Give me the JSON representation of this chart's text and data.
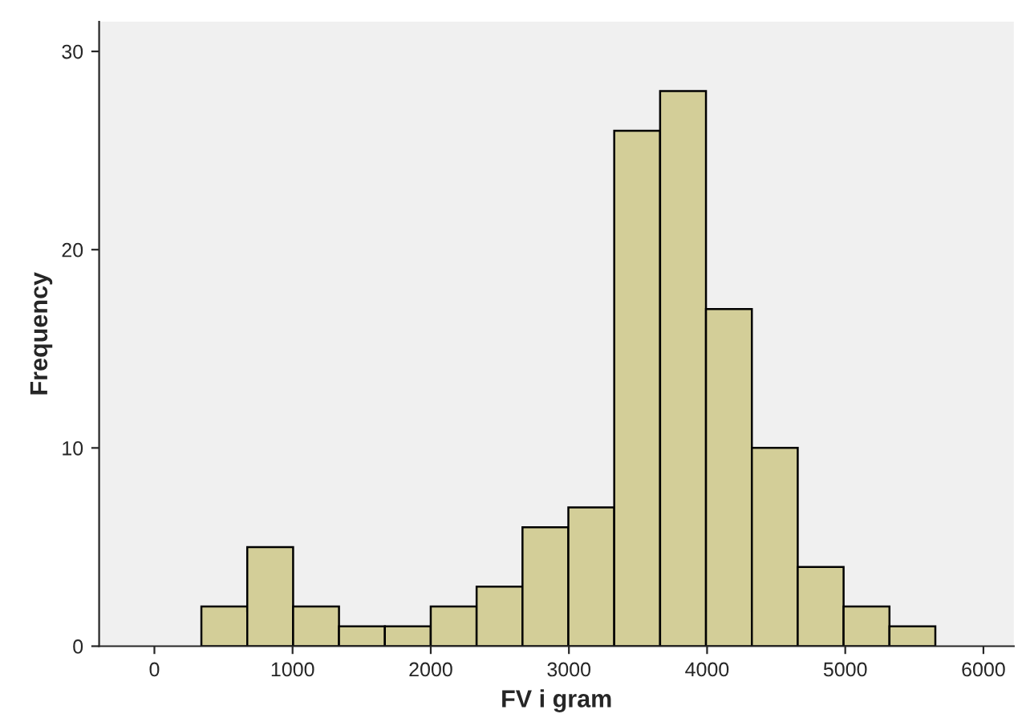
{
  "chart_data": {
    "type": "histogram",
    "xlabel": "FV i gram",
    "ylabel": "Frequency",
    "bins": [
      340,
      672,
      1004,
      1336,
      1668,
      2000,
      2332,
      2664,
      2996,
      3328,
      3660,
      3992,
      4324,
      4656,
      4988,
      5320,
      5652
    ],
    "values": [
      2,
      5,
      2,
      1,
      1,
      2,
      3,
      6,
      7,
      26,
      28,
      17,
      10,
      4,
      2,
      1
    ],
    "color": "#d3ce98",
    "xlim": [
      -400,
      6220
    ],
    "xticks": [
      0,
      1000,
      2000,
      3000,
      4000,
      5000,
      6000
    ],
    "ylim": [
      0,
      31.5
    ],
    "yticks": [
      0,
      10,
      20,
      30
    ],
    "grid": false,
    "legend": false
  }
}
